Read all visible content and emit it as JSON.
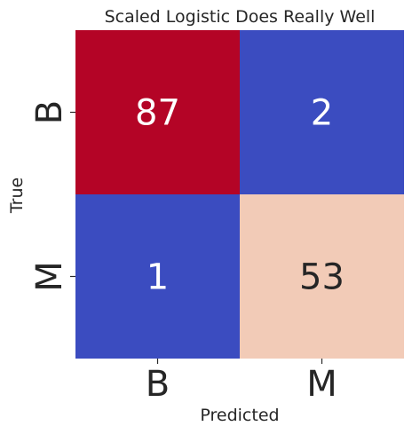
{
  "chart_data": {
    "type": "heatmap",
    "title": "Scaled Logistic Does Really Well",
    "xlabel": "Predicted",
    "ylabel": "True",
    "x_categories": [
      "B",
      "M"
    ],
    "y_categories": [
      "B",
      "M"
    ],
    "values": [
      [
        87,
        2
      ],
      [
        1,
        53
      ]
    ],
    "colormap": "coolwarm",
    "cell_colors": [
      [
        "#b40426",
        "#3b4cc0"
      ],
      [
        "#3b4cc0",
        "#f2cbb7"
      ]
    ],
    "annotation_colors": [
      [
        "#ffffff",
        "#ffffff"
      ],
      [
        "#ffffff",
        "#262626"
      ]
    ],
    "colorbar": false
  }
}
